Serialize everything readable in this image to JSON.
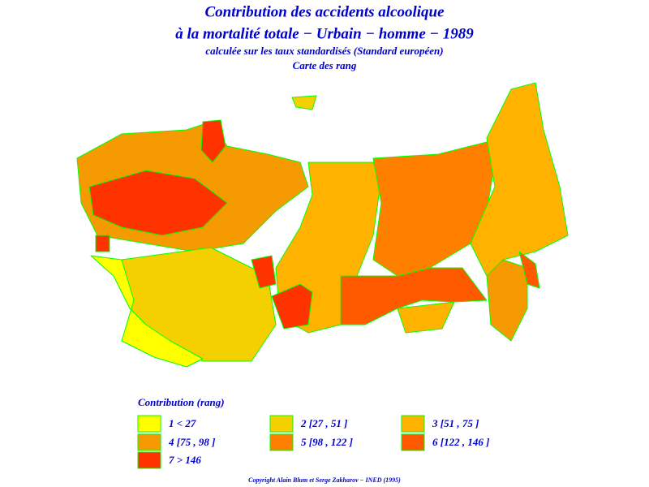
{
  "header": {
    "title_lines": [
      "Contribution des accidents alcoolique",
      "à la mortalité totale − Urbain − homme − 1989"
    ],
    "subtitle": "calculée sur les taux standardisés (Standard européen)",
    "map_label": "Carte des rang"
  },
  "legend": {
    "title": "Contribution (rang)",
    "items": [
      {
        "label": "1 < 27",
        "color": "#ffff00"
      },
      {
        "label": "2 [27 , 51 ]",
        "color": "#f5d000"
      },
      {
        "label": "3 [51 , 75 ]",
        "color": "#ffb300"
      },
      {
        "label": "4 [75 , 98 ]",
        "color": "#f59a00"
      },
      {
        "label": "5 [98 , 122 ]",
        "color": "#ff8000"
      },
      {
        "label": "6 [122 , 146 ]",
        "color": "#ff5a00"
      },
      {
        "label": "7 > 146",
        "color": "#ff3300"
      }
    ]
  },
  "footer": {
    "copyright": "Copyright Alain Blum et Serge Zakharov − INED (1995)"
  }
}
